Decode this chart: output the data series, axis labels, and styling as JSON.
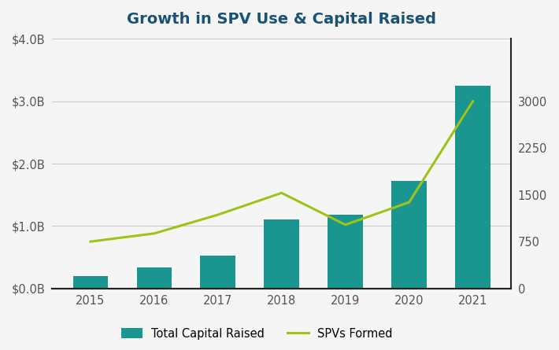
{
  "title": "Growth in SPV Use & Capital Raised",
  "years": [
    2015,
    2016,
    2017,
    2018,
    2019,
    2020,
    2021
  ],
  "capital_raised_B": [
    0.2,
    0.33,
    0.52,
    1.1,
    1.18,
    1.72,
    3.25
  ],
  "spvs_formed": [
    750,
    880,
    1180,
    1530,
    1020,
    1380,
    3000
  ],
  "bar_color": "#1a9590",
  "line_color": "#9ec417",
  "left_ylim": [
    0,
    4.0
  ],
  "right_ylim": [
    0,
    4000
  ],
  "left_yticks": [
    0.0,
    1.0,
    2.0,
    3.0,
    4.0
  ],
  "right_yticks": [
    0,
    750,
    1500,
    2250,
    3000
  ],
  "left_yticklabels": [
    "$0.0B",
    "$1.0B",
    "$2.0B",
    "$3.0B",
    "$4.0B"
  ],
  "right_yticklabels": [
    "0",
    "750",
    "1500",
    "2250",
    "3000"
  ],
  "legend_labels": [
    "Total Capital Raised",
    "SPVs Formed"
  ],
  "background_color": "#f5f5f5",
  "plot_bg_color": "#f5f5f5",
  "title_color": "#1a5276",
  "tick_color": "#555555",
  "title_fontsize": 14,
  "tick_fontsize": 10.5,
  "legend_fontsize": 10.5,
  "bar_width": 0.55,
  "line_width": 2.2,
  "grid_color": "#cccccc",
  "bottom_spine_color": "#222222",
  "right_spine_color": "#222222"
}
